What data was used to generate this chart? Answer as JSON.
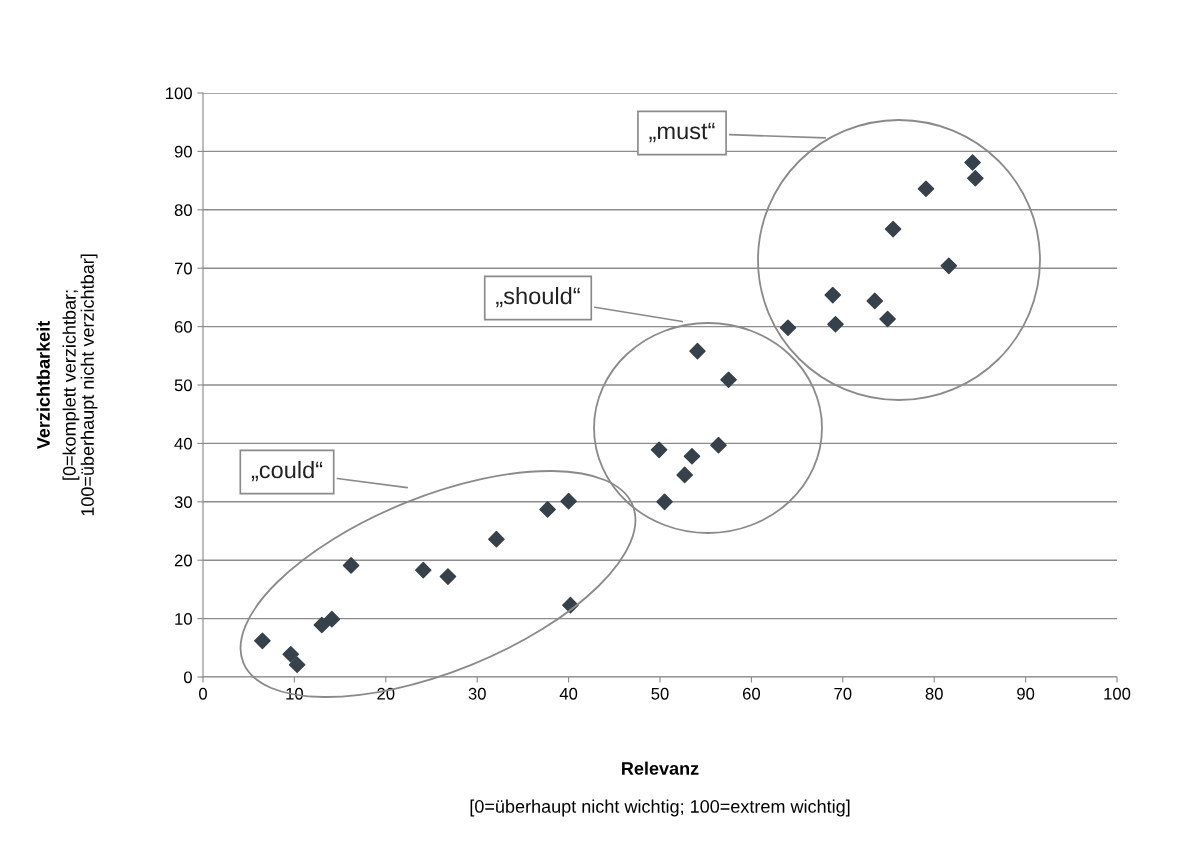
{
  "chart_data": {
    "type": "scatter",
    "xlabel": "Relevanz\n[0=überhaupt nicht wichtig; 100=extrem wichtig]",
    "ylabel": "Verzichtbarkeit\n[0=komplett verzichtbar;\n100=überhaupt nicht verzichtbar]",
    "x": [
      6.5,
      9.6,
      10.3,
      13.0,
      14.1,
      16.2,
      24.1,
      26.8,
      32.1,
      37.7,
      40.0,
      40.2,
      54.1,
      57.5,
      49.9,
      53.5,
      56.4,
      52.7,
      50.5,
      84.2,
      84.5,
      79.1,
      75.5,
      81.6,
      68.9,
      73.5,
      69.2,
      74.9,
      64.0
    ],
    "series": [
      {
        "color": "#36414b",
        "values": [
          6.2,
          3.9,
          2.1,
          8.9,
          9.9,
          19.1,
          18.3,
          17.2,
          23.6,
          28.7,
          30.1,
          12.3,
          55.8,
          50.9,
          38.9,
          37.8,
          39.7,
          34.6,
          30.0,
          88.1,
          85.4,
          83.6,
          76.7,
          70.4,
          65.4,
          64.4,
          60.4,
          61.3,
          59.8
        ]
      }
    ],
    "annotations": [
      "„could“",
      "„should“",
      "„must“"
    ],
    "xlim": [
      0,
      100
    ],
    "xticks": [
      0,
      10,
      20,
      30,
      40,
      50,
      60,
      70,
      80,
      90,
      100
    ],
    "ylim": [
      0,
      100
    ],
    "yticks": [
      0,
      10,
      20,
      30,
      40,
      50,
      60,
      70,
      80,
      90,
      100
    ],
    "grid": "y",
    "marker": "diamond",
    "legend": false
  }
}
